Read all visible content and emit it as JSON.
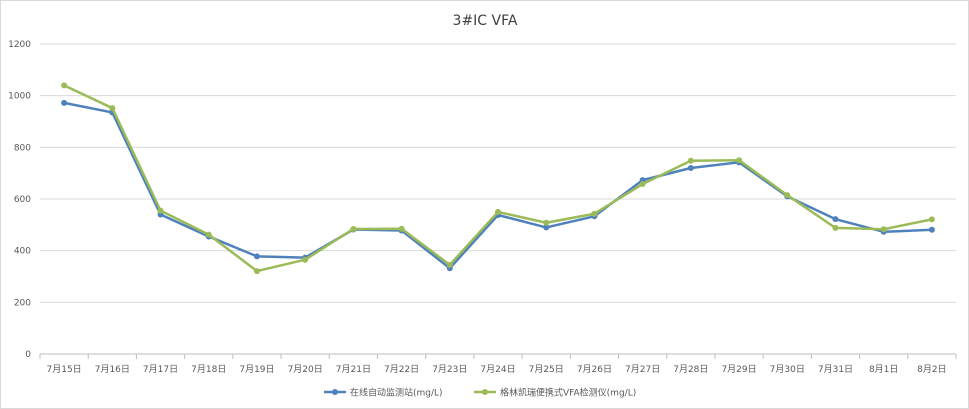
{
  "chart_data": {
    "type": "line",
    "title": "3#IC  VFA",
    "xlabel": "",
    "ylabel": "",
    "categories": [
      "7月15日",
      "7月16日",
      "7月17日",
      "7月18日",
      "7月19日",
      "7月20日",
      "7月21日",
      "7月22日",
      "7月23日",
      "7月24日",
      "7月25日",
      "7月26日",
      "7月27日",
      "7月28日",
      "7月29日",
      "7月30日",
      "7月31日",
      "8月1日",
      "8月2日"
    ],
    "ylim": [
      0,
      1200
    ],
    "yticks": [
      0,
      200,
      400,
      600,
      800,
      1000,
      1200
    ],
    "grid": true,
    "legend_position": "bottom",
    "series": [
      {
        "name": "在线自动监测站(mg/L)",
        "color": "#4f81bd",
        "values": [
          972,
          935,
          540,
          455,
          378,
          373,
          482,
          478,
          332,
          538,
          490,
          533,
          673,
          720,
          742,
          610,
          522,
          473,
          481
        ]
      },
      {
        "name": "格林凯瑞便携式VFA检测仪(mg/L)",
        "color": "#9bbb59",
        "values": [
          1040,
          952,
          555,
          462,
          321,
          365,
          484,
          485,
          345,
          550,
          508,
          543,
          658,
          748,
          750,
          615,
          488,
          483,
          521
        ]
      }
    ]
  }
}
